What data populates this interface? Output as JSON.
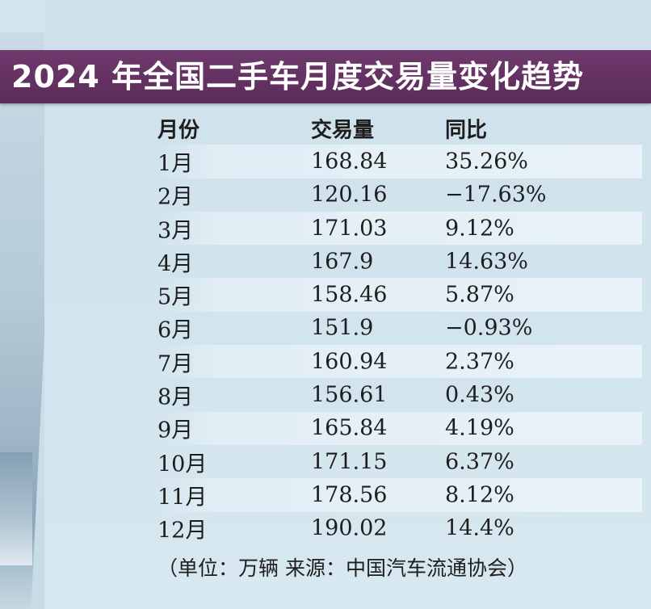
{
  "title": "2024 年全国二手车月度交易量变化趋势",
  "header": {
    "month": "月份",
    "volume": "交易量",
    "yoy": "同比"
  },
  "rows": [
    {
      "month": "1月",
      "volume": "168.84",
      "yoy": "35.26%"
    },
    {
      "month": "2月",
      "volume": "120.16",
      "yoy": "−17.63%"
    },
    {
      "month": "3月",
      "volume": "171.03",
      "yoy": "9.12%"
    },
    {
      "month": "4月",
      "volume": "167.9",
      "yoy": "14.63%"
    },
    {
      "month": "5月",
      "volume": "158.46",
      "yoy": "5.87%"
    },
    {
      "month": "6月",
      "volume": "151.9",
      "yoy": "−0.93%"
    },
    {
      "month": "7月",
      "volume": "160.94",
      "yoy": "2.37%"
    },
    {
      "month": "8月",
      "volume": "156.61",
      "yoy": "0.43%"
    },
    {
      "month": "9月",
      "volume": "165.84",
      "yoy": "4.19%"
    },
    {
      "month": "10月",
      "volume": "171.15",
      "yoy": "6.37%"
    },
    {
      "month": "11月",
      "volume": "178.56",
      "yoy": "8.12%"
    },
    {
      "month": "12月",
      "volume": "190.02",
      "yoy": "14.4%"
    }
  ],
  "footnote": "（单位：万辆 来源：中国汽车流通协会）",
  "colors": {
    "title_bar": "#5a2b59",
    "panel": "#d2e4ed",
    "row_highlight": "#e8f2f8",
    "text": "#1e1e1e"
  }
}
